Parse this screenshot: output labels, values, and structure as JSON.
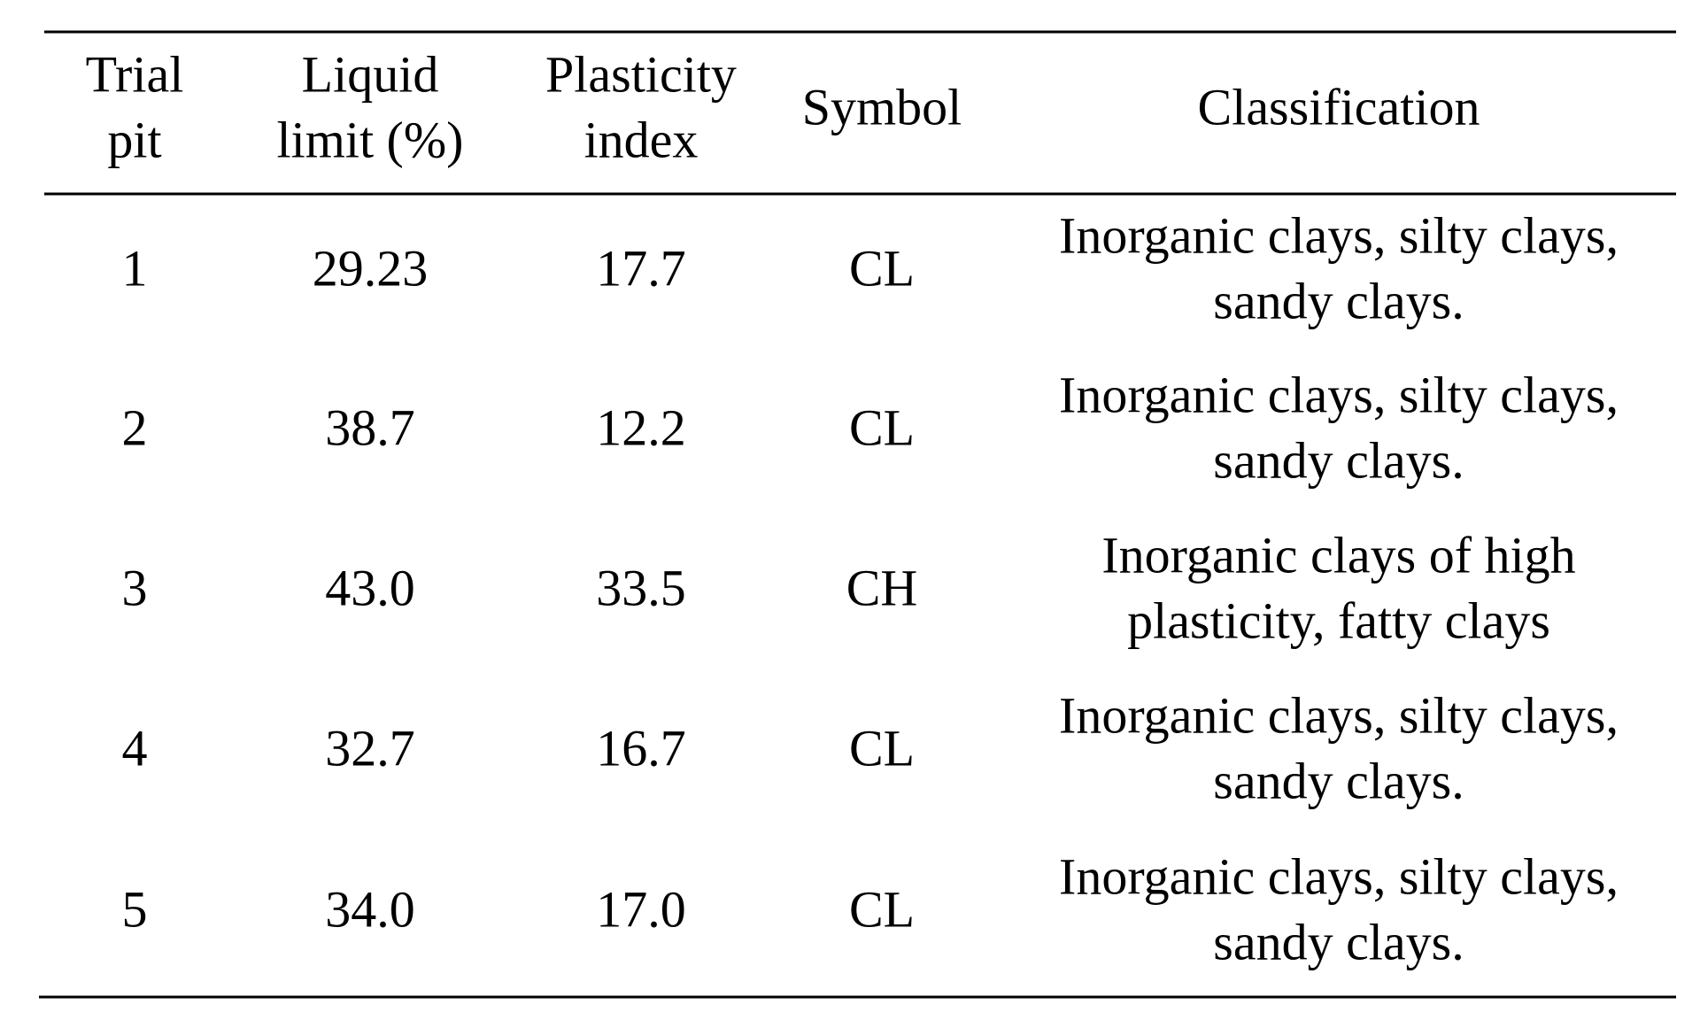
{
  "table": {
    "header": [
      [
        "Trial",
        "pit"
      ],
      [
        "Liquid",
        "limit (%)"
      ],
      [
        "Plasticity",
        "index"
      ],
      [
        "Symbol"
      ],
      [
        "Classification"
      ]
    ],
    "rows": [
      [
        [
          "1"
        ],
        [
          "29.23"
        ],
        [
          "17.7"
        ],
        [
          "CL"
        ],
        [
          "Inorganic clays, silty clays,",
          "sandy clays."
        ]
      ],
      [
        [
          "2"
        ],
        [
          "38.7"
        ],
        [
          "12.2"
        ],
        [
          "CL"
        ],
        [
          "Inorganic clays, silty clays,",
          "sandy clays."
        ]
      ],
      [
        [
          "3"
        ],
        [
          "43.0"
        ],
        [
          "33.5"
        ],
        [
          "CH"
        ],
        [
          "Inorganic clays of high",
          "plasticity, fatty clays"
        ]
      ],
      [
        [
          "4"
        ],
        [
          "32.7"
        ],
        [
          "16.7"
        ],
        [
          "CL"
        ],
        [
          "Inorganic clays, silty clays,",
          "sandy clays."
        ]
      ],
      [
        [
          "5"
        ],
        [
          "34.0"
        ],
        [
          "17.0"
        ],
        [
          "CL"
        ],
        [
          "Inorganic clays, silty clays,",
          "sandy clays."
        ]
      ]
    ]
  }
}
